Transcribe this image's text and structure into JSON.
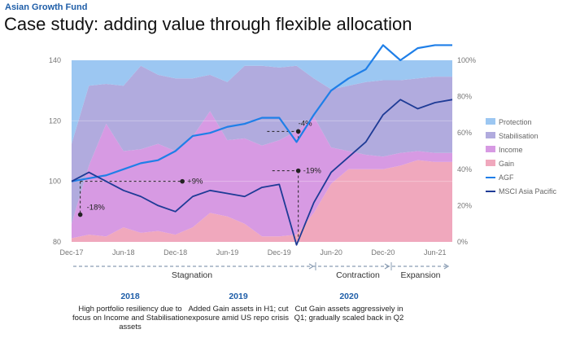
{
  "header": {
    "supertitle": "Asian Growth Fund",
    "title": "Case study: adding value through flexible allocation"
  },
  "colors": {
    "protection": "#9cc7f2",
    "stabilisation": "#b1abde",
    "income": "#d79ae3",
    "gain": "#f0a8bd",
    "agf": "#1f7fe8",
    "msci": "#1e3b96"
  },
  "chart_data": {
    "type": "area",
    "title": "Case study: adding value through flexible allocation",
    "x": [
      "2017-12",
      "2018-02",
      "2018-04",
      "2018-06",
      "2018-08",
      "2018-10",
      "2018-12",
      "2019-02",
      "2019-04",
      "2019-06",
      "2019-08",
      "2019-10",
      "2019-12",
      "2020-02",
      "2020-04",
      "2020-06",
      "2020-08",
      "2020-10",
      "2020-12",
      "2021-02",
      "2021-04",
      "2021-06",
      "2021-07"
    ],
    "x_tick_labels": [
      "Dec-17",
      "Jun-18",
      "Dec-18",
      "Jun-19",
      "Dec-19",
      "Jun-20",
      "Dec-20",
      "Jun-21"
    ],
    "left_axis": {
      "label": "",
      "ylim": [
        80,
        140
      ],
      "ticks": [
        "80",
        "100",
        "120",
        "140"
      ]
    },
    "right_axis": {
      "label": "",
      "ylim": [
        0,
        100
      ],
      "ticks": [
        "0%",
        "20%",
        "40%",
        "60%",
        "80%",
        "100%"
      ]
    },
    "allocation_series": [
      {
        "name": "Gain",
        "values": [
          2,
          4,
          3,
          8,
          5,
          6,
          4,
          8,
          16,
          14,
          10,
          3,
          3,
          4,
          16,
          32,
          40,
          40,
          40,
          42,
          45,
          44,
          44
        ]
      },
      {
        "name": "Income",
        "values": [
          8,
          38,
          62,
          42,
          46,
          48,
          46,
          50,
          56,
          42,
          47,
          50,
          53,
          57,
          53,
          20,
          10,
          8,
          7,
          7,
          5,
          5,
          5
        ]
      },
      {
        "name": "Stabilisation",
        "values": [
          44,
          44,
          22,
          36,
          46,
          38,
          40,
          32,
          20,
          32,
          40,
          44,
          40,
          36,
          21,
          32,
          36,
          40,
          42,
          40,
          40,
          42,
          42
        ]
      },
      {
        "name": "Protection",
        "values": [
          46,
          14,
          13,
          14,
          3,
          8,
          10,
          10,
          8,
          12,
          3,
          3,
          4,
          3,
          10,
          16,
          14,
          12,
          11,
          11,
          10,
          9,
          9
        ]
      }
    ],
    "line_series": [
      {
        "name": "AGF",
        "axis": "left",
        "values": [
          100,
          101,
          102,
          104,
          106,
          107,
          110,
          115,
          116,
          118,
          119,
          121,
          121,
          113,
          122,
          130,
          134,
          137,
          145,
          140,
          144,
          145,
          145
        ]
      },
      {
        "name": "MSCI Asia Pacific",
        "axis": "left",
        "values": [
          100,
          103,
          100,
          97,
          95,
          92,
          90,
          95,
          97,
          96,
          95,
          98,
          99,
          79,
          93,
          103,
          108,
          113,
          122,
          127,
          124,
          126,
          127
        ]
      }
    ],
    "legend": [
      "Protection",
      "Stabilisation",
      "Income",
      "Gain",
      "AGF",
      "MSCI Asia Pacific"
    ],
    "legend_position": "right",
    "annotations": [
      "+9%",
      "-18%",
      "-4%",
      "-19%"
    ]
  },
  "phases": [
    {
      "label": "Stagnation"
    },
    {
      "label": "Contraction"
    },
    {
      "label": "Expansion"
    }
  ],
  "notes": [
    {
      "year": "2018",
      "text": "High portfolio resiliency due to focus on Income and Stabilisation assets"
    },
    {
      "year": "2019",
      "text": "Added Gain assets in H1; cut exposure amid US repo crisis"
    },
    {
      "year": "2020",
      "text": "Cut Gain assets aggressively in Q1; gradually scaled back in Q2"
    }
  ]
}
